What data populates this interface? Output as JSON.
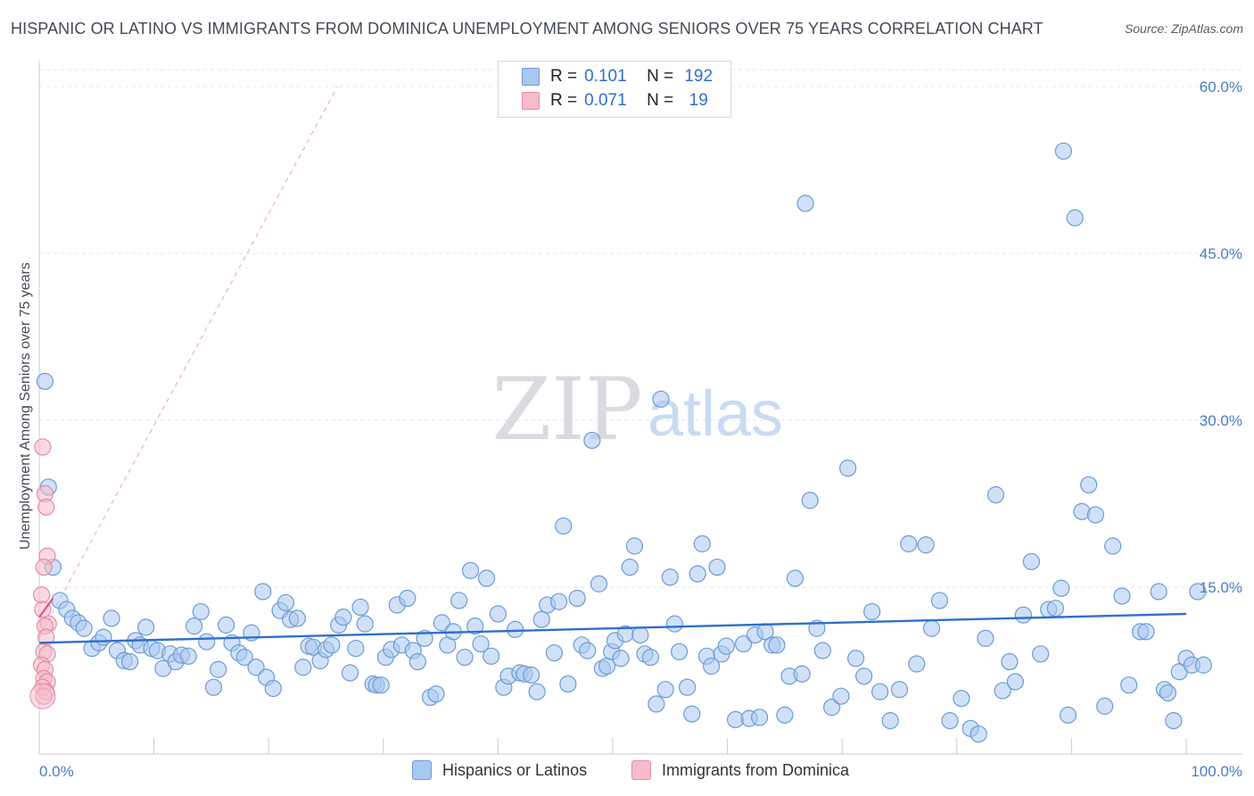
{
  "header": {
    "title": "HISPANIC OR LATINO VS IMMIGRANTS FROM DOMINICA UNEMPLOYMENT AMONG SENIORS OVER 75 YEARS CORRELATION CHART",
    "source": "Source: ZipAtlas.com"
  },
  "watermark": {
    "zip": "ZIP",
    "atlas": "atlas"
  },
  "legend": {
    "r_label": "R =",
    "n_label": "N =",
    "rows": [
      {
        "r": "0.101",
        "n": "192",
        "swatch_fill": "#a9c8f0",
        "swatch_stroke": "#6b9bd8"
      },
      {
        "r": "0.071",
        "n": "19",
        "swatch_fill": "#f6bccb",
        "swatch_stroke": "#e58aa3"
      }
    ]
  },
  "bottom_legend": [
    {
      "label": "Hispanics or Latinos",
      "fill": "#a9c8f0",
      "stroke": "#6b9bd8"
    },
    {
      "label": "Immigrants from Dominica",
      "fill": "#f6bccb",
      "stroke": "#e58aa3"
    }
  ],
  "chart_data": {
    "type": "scatter",
    "title": "HISPANIC OR LATINO VS IMMIGRANTS FROM DOMINICA UNEMPLOYMENT AMONG SENIORS OVER 75 YEARS CORRELATION CHART",
    "xlabel": "",
    "ylabel": "Unemployment Among Seniors over 75 years",
    "xlim": [
      0,
      100
    ],
    "ylim": [
      0,
      60
    ],
    "x_tick_labels": {
      "min": "0.0%",
      "max": "100.0%"
    },
    "y_ticks": [
      {
        "value": 15,
        "label": "15.0%"
      },
      {
        "value": 30,
        "label": "30.0%"
      },
      {
        "value": 45,
        "label": "45.0%"
      },
      {
        "value": 60,
        "label": "60.0%"
      }
    ],
    "grid": true,
    "series": [
      {
        "name": "Hispanics or Latinos",
        "color": "#6b9bd8",
        "fill": "#a9c8f0",
        "trend": {
          "x0": 0,
          "y0": 10.0,
          "x1": 100,
          "y1": 12.6,
          "color": "#2f6fcf"
        },
        "points": [
          [
            0.5,
            33.5
          ],
          [
            0.8,
            24.0
          ],
          [
            1.2,
            16.8
          ],
          [
            1.8,
            13.8
          ],
          [
            2.4,
            13.0
          ],
          [
            2.9,
            12.2
          ],
          [
            3.4,
            11.8
          ],
          [
            3.9,
            11.3
          ],
          [
            4.6,
            9.5
          ],
          [
            5.2,
            10.0
          ],
          [
            5.6,
            10.5
          ],
          [
            6.3,
            12.2
          ],
          [
            6.8,
            9.3
          ],
          [
            7.4,
            8.4
          ],
          [
            7.9,
            8.3
          ],
          [
            8.4,
            10.2
          ],
          [
            8.8,
            9.8
          ],
          [
            9.3,
            11.4
          ],
          [
            9.8,
            9.5
          ],
          [
            10.3,
            9.3
          ],
          [
            10.8,
            7.7
          ],
          [
            11.4,
            9.0
          ],
          [
            11.9,
            8.3
          ],
          [
            12.4,
            8.9
          ],
          [
            13.0,
            8.8
          ],
          [
            13.5,
            11.5
          ],
          [
            14.1,
            12.8
          ],
          [
            14.6,
            10.1
          ],
          [
            15.2,
            6.0
          ],
          [
            15.6,
            7.6
          ],
          [
            16.3,
            11.6
          ],
          [
            16.8,
            10.0
          ],
          [
            17.4,
            9.1
          ],
          [
            17.9,
            8.7
          ],
          [
            18.5,
            10.9
          ],
          [
            18.9,
            7.8
          ],
          [
            19.5,
            14.6
          ],
          [
            19.8,
            6.9
          ],
          [
            20.4,
            5.9
          ],
          [
            21.0,
            12.9
          ],
          [
            21.5,
            13.6
          ],
          [
            21.9,
            12.1
          ],
          [
            22.5,
            12.2
          ],
          [
            23.0,
            7.8
          ],
          [
            23.5,
            9.7
          ],
          [
            23.9,
            9.6
          ],
          [
            24.5,
            8.4
          ],
          [
            25.0,
            9.4
          ],
          [
            25.5,
            9.8
          ],
          [
            26.1,
            11.6
          ],
          [
            26.5,
            12.3
          ],
          [
            27.1,
            7.3
          ],
          [
            27.6,
            9.5
          ],
          [
            28.0,
            13.2
          ],
          [
            28.4,
            11.7
          ],
          [
            29.1,
            6.3
          ],
          [
            29.4,
            6.2
          ],
          [
            29.8,
            6.2
          ],
          [
            30.2,
            8.7
          ],
          [
            30.7,
            9.4
          ],
          [
            31.2,
            13.4
          ],
          [
            31.6,
            9.8
          ],
          [
            32.1,
            14.0
          ],
          [
            32.6,
            9.3
          ],
          [
            33.0,
            8.3
          ],
          [
            33.6,
            10.4
          ],
          [
            34.1,
            5.1
          ],
          [
            34.6,
            5.4
          ],
          [
            35.1,
            11.8
          ],
          [
            35.6,
            9.8
          ],
          [
            36.1,
            11.0
          ],
          [
            36.6,
            13.8
          ],
          [
            37.1,
            8.7
          ],
          [
            37.6,
            16.5
          ],
          [
            38.0,
            11.5
          ],
          [
            38.5,
            9.9
          ],
          [
            39.0,
            15.8
          ],
          [
            39.4,
            8.8
          ],
          [
            40.0,
            12.6
          ],
          [
            40.5,
            6.0
          ],
          [
            40.9,
            7.0
          ],
          [
            41.5,
            11.2
          ],
          [
            41.9,
            7.3
          ],
          [
            42.3,
            7.2
          ],
          [
            42.9,
            7.1
          ],
          [
            43.4,
            5.6
          ],
          [
            43.8,
            12.1
          ],
          [
            44.3,
            13.4
          ],
          [
            44.9,
            9.1
          ],
          [
            45.3,
            13.7
          ],
          [
            45.7,
            20.5
          ],
          [
            46.1,
            6.3
          ],
          [
            46.9,
            14.0
          ],
          [
            47.3,
            9.8
          ],
          [
            47.8,
            9.3
          ],
          [
            48.2,
            28.2
          ],
          [
            48.8,
            15.3
          ],
          [
            49.1,
            7.7
          ],
          [
            49.5,
            7.9
          ],
          [
            49.9,
            9.2
          ],
          [
            50.2,
            10.2
          ],
          [
            50.7,
            8.6
          ],
          [
            51.1,
            10.8
          ],
          [
            51.5,
            16.8
          ],
          [
            51.9,
            18.7
          ],
          [
            52.4,
            10.7
          ],
          [
            52.8,
            9.0
          ],
          [
            53.3,
            8.7
          ],
          [
            53.8,
            4.5
          ],
          [
            54.2,
            31.9
          ],
          [
            54.6,
            5.8
          ],
          [
            55.0,
            15.9
          ],
          [
            55.4,
            11.7
          ],
          [
            55.8,
            9.2
          ],
          [
            56.5,
            6.0
          ],
          [
            56.9,
            3.6
          ],
          [
            57.4,
            16.2
          ],
          [
            57.8,
            18.9
          ],
          [
            58.2,
            8.8
          ],
          [
            58.6,
            7.9
          ],
          [
            59.1,
            16.8
          ],
          [
            59.5,
            9.0
          ],
          [
            59.9,
            9.7
          ],
          [
            60.7,
            3.1
          ],
          [
            61.4,
            9.9
          ],
          [
            61.9,
            3.2
          ],
          [
            62.4,
            10.7
          ],
          [
            62.8,
            3.3
          ],
          [
            63.3,
            11.0
          ],
          [
            63.9,
            9.8
          ],
          [
            64.3,
            9.8
          ],
          [
            65.0,
            3.5
          ],
          [
            65.4,
            7.0
          ],
          [
            65.9,
            15.8
          ],
          [
            66.5,
            7.2
          ],
          [
            67.2,
            22.8
          ],
          [
            67.8,
            11.3
          ],
          [
            68.3,
            9.3
          ],
          [
            69.1,
            4.2
          ],
          [
            69.9,
            5.2
          ],
          [
            70.5,
            25.7
          ],
          [
            71.2,
            8.6
          ],
          [
            71.9,
            7.0
          ],
          [
            72.6,
            12.8
          ],
          [
            73.3,
            5.6
          ],
          [
            74.2,
            3.0
          ],
          [
            75.0,
            5.8
          ],
          [
            75.8,
            18.9
          ],
          [
            76.5,
            8.1
          ],
          [
            77.3,
            18.8
          ],
          [
            77.8,
            11.3
          ],
          [
            78.5,
            13.8
          ],
          [
            79.4,
            3.0
          ],
          [
            80.4,
            5.0
          ],
          [
            81.2,
            2.3
          ],
          [
            81.9,
            1.8
          ],
          [
            82.5,
            10.4
          ],
          [
            83.4,
            23.3
          ],
          [
            84.0,
            5.7
          ],
          [
            84.6,
            8.3
          ],
          [
            85.1,
            6.5
          ],
          [
            85.8,
            12.5
          ],
          [
            86.5,
            17.3
          ],
          [
            87.3,
            9.0
          ],
          [
            88.0,
            13.0
          ],
          [
            88.6,
            13.1
          ],
          [
            89.1,
            14.9
          ],
          [
            89.3,
            54.2
          ],
          [
            89.7,
            3.5
          ],
          [
            90.3,
            48.2
          ],
          [
            90.9,
            21.8
          ],
          [
            91.5,
            24.2
          ],
          [
            92.1,
            21.5
          ],
          [
            92.9,
            4.3
          ],
          [
            93.6,
            18.7
          ],
          [
            94.4,
            14.2
          ],
          [
            95.0,
            6.2
          ],
          [
            96.0,
            11.0
          ],
          [
            96.5,
            11.0
          ],
          [
            97.6,
            14.6
          ],
          [
            98.1,
            5.8
          ],
          [
            98.4,
            5.5
          ],
          [
            98.9,
            3.0
          ],
          [
            99.4,
            7.4
          ],
          [
            100.0,
            8.6
          ],
          [
            100.5,
            8.0
          ],
          [
            101.0,
            14.6
          ],
          [
            101.5,
            8.0
          ],
          [
            66.8,
            49.5
          ]
        ]
      },
      {
        "name": "Immigrants from Dominica",
        "color": "#e58aa3",
        "fill": "#f6bccb",
        "trend": {
          "x0": 0,
          "y0": 12.3,
          "x1": 1.2,
          "y1": 14.0,
          "color": "#e0578a"
        },
        "reference_line": {
          "x0": 0,
          "y0": 10.5,
          "x1": 26,
          "y1": 60,
          "color": "#e58aa3"
        },
        "points": [
          [
            0.3,
            27.6
          ],
          [
            0.5,
            23.4
          ],
          [
            0.6,
            22.2
          ],
          [
            0.7,
            17.8
          ],
          [
            0.4,
            16.8
          ],
          [
            0.2,
            14.3
          ],
          [
            0.3,
            13.0
          ],
          [
            0.8,
            11.7
          ],
          [
            0.5,
            11.5
          ],
          [
            0.6,
            10.5
          ],
          [
            0.4,
            9.2
          ],
          [
            0.7,
            9.0
          ],
          [
            0.2,
            8.0
          ],
          [
            0.5,
            7.6
          ],
          [
            0.4,
            6.8
          ],
          [
            0.7,
            6.5
          ],
          [
            0.3,
            6.0
          ],
          [
            0.6,
            5.6
          ],
          [
            0.4,
            5.2
          ]
        ]
      }
    ]
  }
}
